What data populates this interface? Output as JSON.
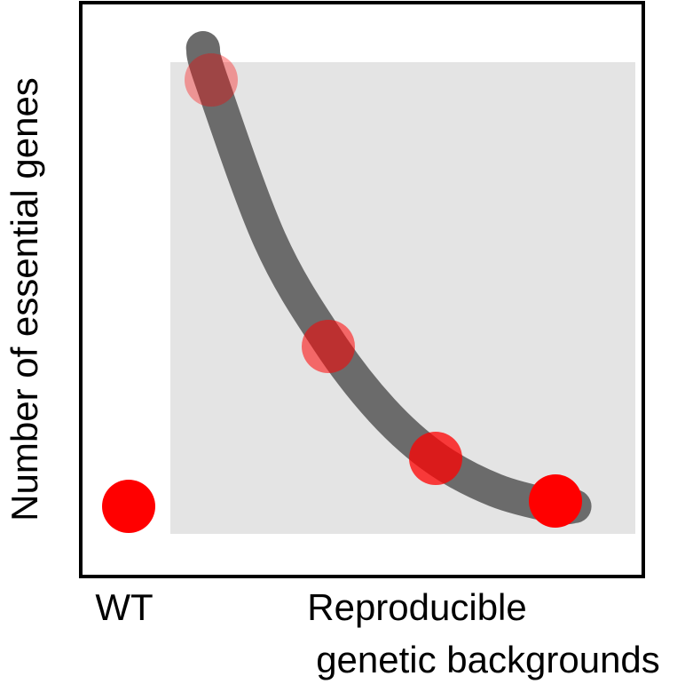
{
  "chart_data": {
    "type": "scatter",
    "ylabel": "Number of essential genes",
    "xlabel_lines": [
      "Reproducible",
      "genetic backgrounds"
    ],
    "categories": [
      "WT"
    ],
    "grid": false,
    "shaded_region": "right of WT",
    "colors": {
      "point": "#ff0000",
      "trend": "#6b6b6b",
      "shade": "#e4e4e4",
      "frame": "#000000"
    },
    "series": [
      {
        "points": [
          {
            "x": 0,
            "y": 0.1,
            "opacity": 1.0
          },
          {
            "x": 1,
            "y": 0.9,
            "opacity": 0.35
          },
          {
            "x": 2,
            "y": 0.4,
            "opacity": 0.55
          },
          {
            "x": 3,
            "y": 0.19,
            "opacity": 0.75
          },
          {
            "x": 4,
            "y": 0.11,
            "opacity": 1.0
          }
        ]
      }
    ],
    "trend_curve": [
      [
        0.9,
        0.96
      ],
      [
        1.0,
        0.9
      ],
      [
        1.5,
        0.6
      ],
      [
        2.0,
        0.41
      ],
      [
        2.5,
        0.28
      ],
      [
        3.0,
        0.19
      ],
      [
        3.5,
        0.13
      ],
      [
        4.0,
        0.1
      ],
      [
        4.4,
        0.1
      ]
    ]
  }
}
